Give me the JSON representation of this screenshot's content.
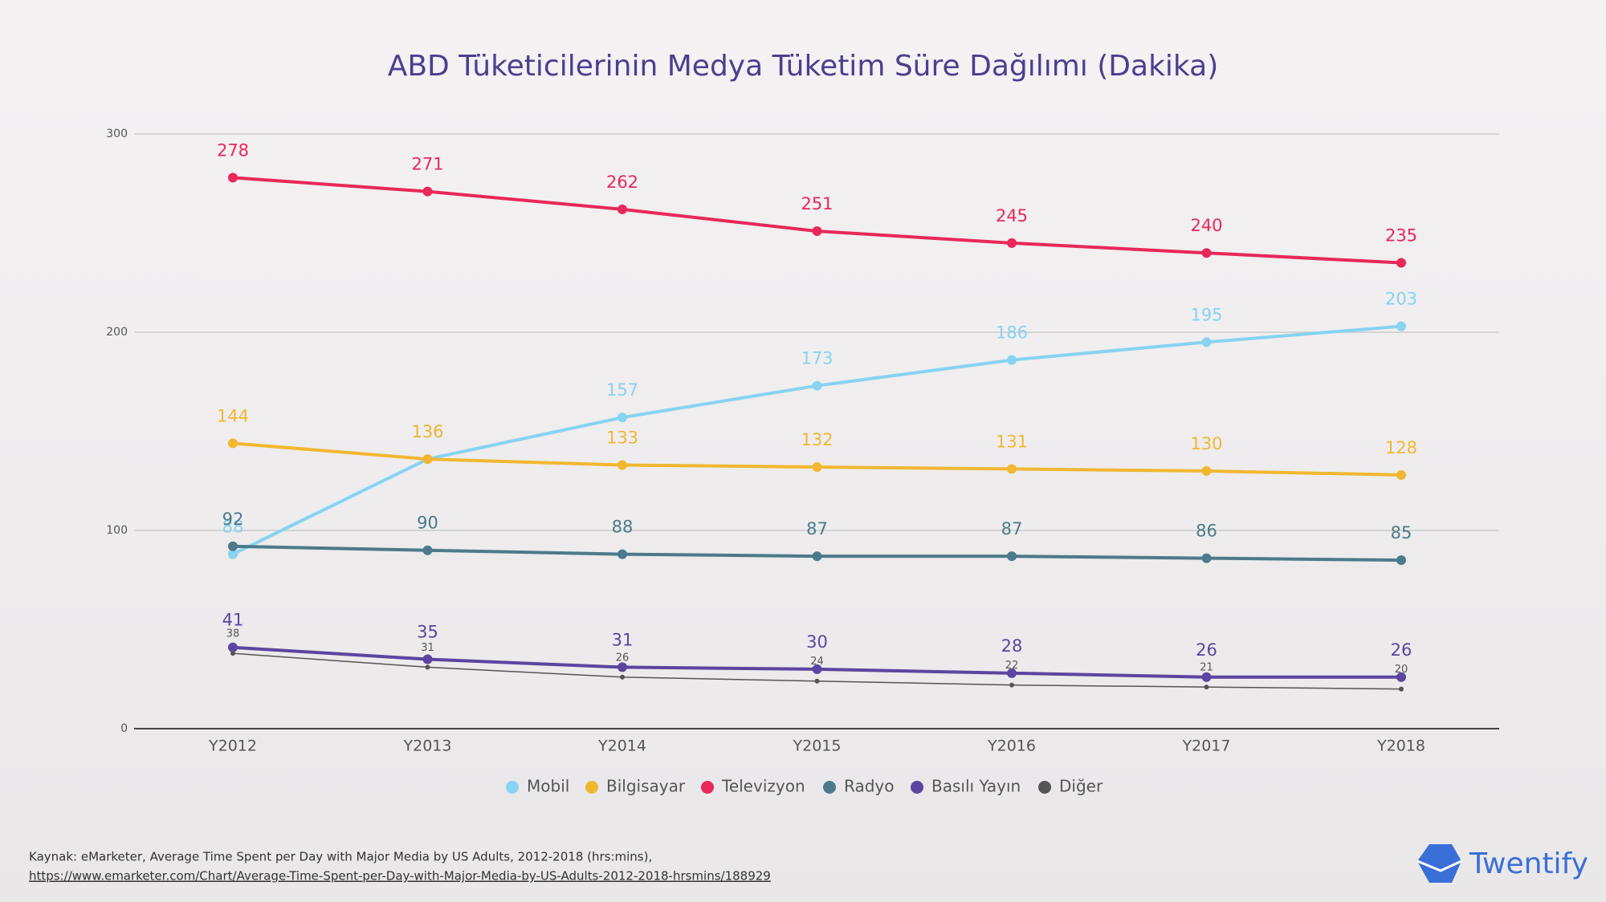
{
  "chart_data": {
    "type": "line",
    "title": "ABD Tüketicilerinin Medya Tüketim Süre Dağılımı (Dakika)",
    "categories": [
      "Y2012",
      "Y2013",
      "Y2014",
      "Y2015",
      "Y2016",
      "Y2017",
      "Y2018"
    ],
    "series": [
      {
        "name": "Mobil",
        "color": "#87d3f0",
        "values": [
          88,
          136,
          157,
          173,
          186,
          195,
          203
        ]
      },
      {
        "name": "Bilgisayar",
        "color": "#f2b731",
        "values": [
          144,
          136,
          133,
          132,
          131,
          130,
          128
        ]
      },
      {
        "name": "Televizyon",
        "color": "#e8285a",
        "values": [
          278,
          271,
          262,
          251,
          245,
          240,
          235
        ]
      },
      {
        "name": "Radyo",
        "color": "#4c7a8a",
        "values": [
          92,
          90,
          88,
          87,
          87,
          86,
          85
        ]
      },
      {
        "name": "Basılı Yayın",
        "color": "#5b45a0",
        "values": [
          41,
          35,
          31,
          30,
          28,
          26,
          26
        ]
      },
      {
        "name": "Diğer",
        "color": "#555555",
        "values": [
          38,
          31,
          26,
          24,
          22,
          21,
          20
        ]
      }
    ],
    "ylim": [
      0,
      300
    ],
    "yticks": [
      0,
      100,
      200,
      300
    ],
    "grid": true,
    "legend": "bottom",
    "source": "Kaynak: eMarketer, Average Time Spent per Day with Major Media by US Adults, 2012-2018 (hrs:mins),",
    "source_url": "https://www.emarketer.com/Chart/Average-Time-Spent-per-Day-with-Major-Media-by-US-Adults-2012-2018-hrsmins/188929",
    "brand": "Twentify"
  }
}
